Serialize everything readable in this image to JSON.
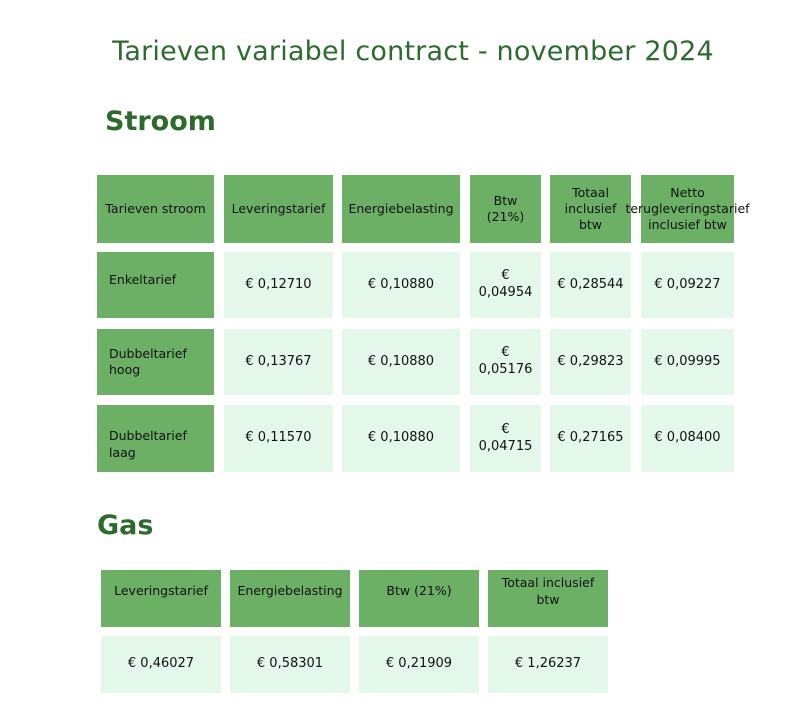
{
  "title": "Tarieven variabel contract - november 2024",
  "stroom": {
    "heading": "Stroom",
    "columns": [
      "Tarieven stroom",
      "Leveringstarief",
      "Energiebelasting",
      "Btw (21%)",
      "Totaal inclusief btw",
      "Netto terugleveringstarief inclusief btw"
    ],
    "rows": [
      {
        "label": "Enkeltarief",
        "values": [
          "€ 0,12710",
          "€ 0,10880",
          "€ 0,04954",
          "€ 0,28544",
          "€ 0,09227"
        ]
      },
      {
        "label": "Dubbeltarief hoog",
        "values": [
          "€ 0,13767",
          "€ 0,10880",
          "€ 0,05176",
          "€ 0,29823",
          "€ 0,09995"
        ]
      },
      {
        "label": "Dubbeltarief laag",
        "values": [
          "€ 0,11570",
          "€ 0,10880",
          "€ 0,04715",
          "€ 0,27165",
          "€ 0,08400"
        ]
      }
    ]
  },
  "gas": {
    "heading": "Gas",
    "columns": [
      "Leveringstarief",
      "Energiebelasting",
      "Btw (21%)",
      "Totaal inclusief btw"
    ],
    "values": [
      "€ 0,46027",
      "€ 0,58301",
      "€ 0,21909",
      "€ 1,26237"
    ]
  }
}
